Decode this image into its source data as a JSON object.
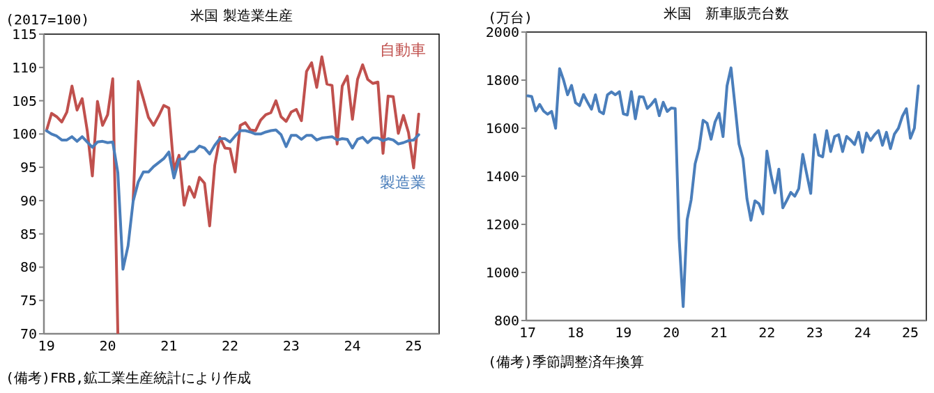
{
  "chart_data": [
    {
      "type": "line",
      "title": "米国 製造業生産",
      "ylabel": "(2017=100)",
      "annotations": [
        "(備考)FRB,鉱工業生産統計により作成"
      ],
      "x": [
        "2019-01",
        "2019-02",
        "2019-03",
        "2019-04",
        "2019-05",
        "2019-06",
        "2019-07",
        "2019-08",
        "2019-09",
        "2019-10",
        "2019-11",
        "2019-12",
        "2020-01",
        "2020-02",
        "2020-03",
        "2020-04",
        "2020-05",
        "2020-06",
        "2020-07",
        "2020-08",
        "2020-09",
        "2020-10",
        "2020-11",
        "2020-12",
        "2021-01",
        "2021-02",
        "2021-03",
        "2021-04",
        "2021-05",
        "2021-06",
        "2021-07",
        "2021-08",
        "2021-09",
        "2021-10",
        "2021-11",
        "2021-12",
        "2022-01",
        "2022-02",
        "2022-03",
        "2022-04",
        "2022-05",
        "2022-06",
        "2022-07",
        "2022-08",
        "2022-09",
        "2022-10",
        "2022-11",
        "2022-12",
        "2023-01",
        "2023-02",
        "2023-03",
        "2023-04",
        "2023-05",
        "2023-06",
        "2023-07",
        "2023-08",
        "2023-09",
        "2023-10",
        "2023-11",
        "2023-12",
        "2024-01",
        "2024-02",
        "2024-03",
        "2024-04",
        "2024-05",
        "2024-06",
        "2024-07",
        "2024-08",
        "2024-09",
        "2024-10",
        "2024-11",
        "2024-12",
        "2025-01",
        "2025-02"
      ],
      "series": [
        {
          "name": "自動車",
          "color": "#c0504d",
          "values": [
            100.5,
            103.1,
            102.6,
            101.8,
            103.3,
            107.2,
            103.6,
            105.3,
            100.5,
            93.7,
            104.9,
            101.3,
            102.9,
            108.3,
            70,
            null,
            null,
            90.0,
            107.9,
            105.3,
            102.5,
            101.3,
            102.7,
            104.3,
            103.9,
            94.6,
            96.8,
            89.3,
            92.1,
            90.5,
            93.5,
            92.6,
            86.2,
            95.3,
            99.5,
            97.9,
            97.8,
            94.3,
            101.3,
            101.7,
            100.6,
            100.5,
            102.1,
            102.9,
            103.2,
            105.0,
            102.6,
            101.9,
            103.3,
            103.7,
            102.0,
            109.4,
            110.7,
            107.0,
            111.6,
            107.5,
            107.3,
            98.5,
            107.2,
            108.7,
            102.2,
            108.2,
            110.4,
            108.2,
            107.6,
            107.8,
            97.1,
            105.7,
            105.6,
            100.1,
            102.8,
            100.2,
            94.9,
            103.0
          ]
        },
        {
          "name": "製造業",
          "color": "#4a7ebb",
          "values": [
            100.5,
            100.0,
            99.7,
            99.1,
            99.1,
            99.6,
            98.9,
            99.6,
            98.8,
            98.0,
            98.8,
            98.9,
            98.7,
            98.8,
            94.2,
            79.7,
            83.2,
            89.9,
            92.8,
            94.3,
            94.3,
            95.1,
            95.7,
            96.3,
            97.3,
            93.4,
            96.2,
            96.3,
            97.3,
            97.4,
            98.2,
            97.9,
            97.0,
            98.3,
            99.3,
            99.3,
            98.8,
            99.7,
            100.5,
            100.5,
            100.3,
            100.0,
            100.0,
            100.3,
            100.5,
            100.6,
            99.9,
            98.1,
            99.8,
            99.8,
            99.2,
            99.8,
            99.8,
            99.1,
            99.4,
            99.5,
            99.6,
            99.1,
            99.3,
            99.2,
            97.9,
            99.2,
            99.5,
            98.7,
            99.4,
            99.4,
            99.0,
            99.3,
            99.1,
            98.5,
            98.7,
            99.0,
            99.1,
            99.9
          ]
        }
      ],
      "xlim": [
        "2018-12-16",
        "2025-06"
      ],
      "ylim": [
        70,
        115
      ],
      "xticks": [
        {
          "value": "2019-01",
          "label": "19"
        },
        {
          "value": "2020-01",
          "label": "20"
        },
        {
          "value": "2021-01",
          "label": "21"
        },
        {
          "value": "2022-01",
          "label": "22"
        },
        {
          "value": "2023-01",
          "label": "23"
        },
        {
          "value": "2024-01",
          "label": "24"
        },
        {
          "value": "2025-01",
          "label": "25"
        }
      ],
      "yticks": [
        70,
        75,
        80,
        85,
        90,
        95,
        100,
        105,
        110,
        115
      ]
    },
    {
      "type": "line",
      "title": "米国　新車販売台数",
      "ylabel": "(万台)",
      "annotations": [
        "(備考)季節調整済年換算"
      ],
      "x": [
        "2017-01",
        "2017-02",
        "2017-03",
        "2017-04",
        "2017-05",
        "2017-06",
        "2017-07",
        "2017-08",
        "2017-09",
        "2017-10",
        "2017-11",
        "2017-12",
        "2018-01",
        "2018-02",
        "2018-03",
        "2018-04",
        "2018-05",
        "2018-06",
        "2018-07",
        "2018-08",
        "2018-09",
        "2018-10",
        "2018-11",
        "2018-12",
        "2019-01",
        "2019-02",
        "2019-03",
        "2019-04",
        "2019-05",
        "2019-06",
        "2019-07",
        "2019-08",
        "2019-09",
        "2019-10",
        "2019-11",
        "2019-12",
        "2020-01",
        "2020-02",
        "2020-03",
        "2020-04",
        "2020-05",
        "2020-06",
        "2020-07",
        "2020-08",
        "2020-09",
        "2020-10",
        "2020-11",
        "2020-12",
        "2021-01",
        "2021-02",
        "2021-03",
        "2021-04",
        "2021-05",
        "2021-06",
        "2021-07",
        "2021-08",
        "2021-09",
        "2021-10",
        "2021-11",
        "2021-12",
        "2022-01",
        "2022-02",
        "2022-03",
        "2022-04",
        "2022-05",
        "2022-06",
        "2022-07",
        "2022-08",
        "2022-09",
        "2022-10",
        "2022-11",
        "2022-12",
        "2023-01",
        "2023-02",
        "2023-03",
        "2023-04",
        "2023-05",
        "2023-06",
        "2023-07",
        "2023-08",
        "2023-09",
        "2023-10",
        "2023-11",
        "2023-12",
        "2024-01",
        "2024-02",
        "2024-03",
        "2024-04",
        "2024-05",
        "2024-06",
        "2024-07",
        "2024-08",
        "2024-09",
        "2024-10",
        "2024-11",
        "2024-12",
        "2025-01",
        "2025-02",
        "2025-03"
      ],
      "series": [
        {
          "color": "#4a7ebb",
          "values": [
            1735,
            1732,
            1672,
            1699,
            1671,
            1658,
            1670,
            1600,
            1848,
            1800,
            1739,
            1778,
            1706,
            1694,
            1740,
            1708,
            1679,
            1739,
            1670,
            1660,
            1739,
            1751,
            1739,
            1752,
            1660,
            1655,
            1752,
            1639,
            1731,
            1730,
            1682,
            1699,
            1720,
            1652,
            1708,
            1670,
            1684,
            1682,
            1140,
            858,
            1220,
            1302,
            1452,
            1515,
            1633,
            1621,
            1554,
            1626,
            1662,
            1565,
            1776,
            1851,
            1694,
            1534,
            1474,
            1307,
            1217,
            1298,
            1286,
            1244,
            1505,
            1409,
            1331,
            1430,
            1269,
            1300,
            1333,
            1317,
            1349,
            1491,
            1409,
            1329,
            1573,
            1488,
            1481,
            1590,
            1503,
            1566,
            1573,
            1503,
            1566,
            1551,
            1532,
            1583,
            1500,
            1580,
            1549,
            1573,
            1590,
            1529,
            1583,
            1515,
            1576,
            1600,
            1650,
            1681,
            1558,
            1600,
            1776
          ]
        }
      ],
      "xlim": [
        "2016-12-20",
        "2025-05"
      ],
      "ylim": [
        800,
        2000
      ],
      "xticks": [
        {
          "value": "2017-01",
          "label": "17"
        },
        {
          "value": "2018-01",
          "label": "18"
        },
        {
          "value": "2019-01",
          "label": "19"
        },
        {
          "value": "2020-01",
          "label": "20"
        },
        {
          "value": "2021-01",
          "label": "21"
        },
        {
          "value": "2022-01",
          "label": "22"
        },
        {
          "value": "2023-01",
          "label": "23"
        },
        {
          "value": "2024-01",
          "label": "24"
        },
        {
          "value": "2025-01",
          "label": "25"
        }
      ],
      "yticks": [
        800,
        1000,
        1200,
        1400,
        1600,
        1800,
        2000
      ]
    }
  ]
}
